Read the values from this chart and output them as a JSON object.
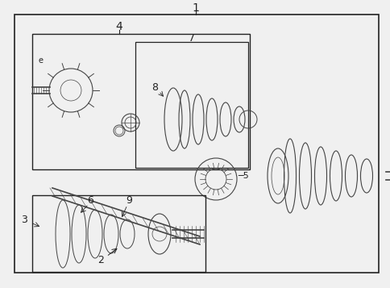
{
  "bg_color": "#f0f0f0",
  "border_color": "#222222",
  "line_color": "#222222",
  "part_color": "#444444",
  "fig_width": 4.85,
  "fig_height": 3.57,
  "dpi": 100
}
